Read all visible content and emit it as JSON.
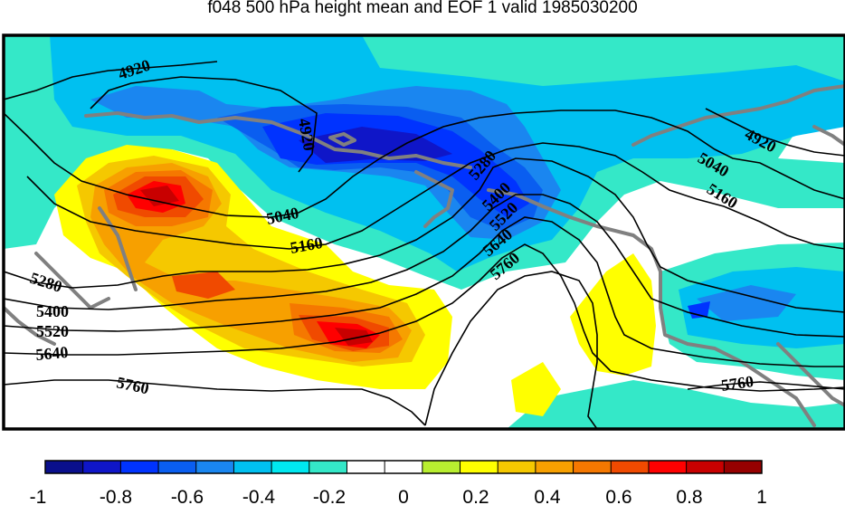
{
  "title": "f048 500 hPa height mean and EOF 1 valid 1985030200",
  "colorbar": {
    "labels": [
      "-1",
      "-0.8",
      "-0.6",
      "-0.4",
      "-0.2",
      "0",
      "0.2",
      "0.4",
      "0.6",
      "0.8",
      "1"
    ],
    "colors": [
      "#0a0f8c",
      "#0f16c8",
      "#0033ff",
      "#0a5ef0",
      "#1a86f0",
      "#00c0f0",
      "#00e8f0",
      "#34e8c8",
      "#ffffff",
      "#ffffff",
      "#b8ee30",
      "#ffff00",
      "#f5c800",
      "#f7a000",
      "#f57800",
      "#f04a00",
      "#ff0000",
      "#c80000",
      "#960000"
    ]
  },
  "contour_labels": [
    "4920",
    "4920",
    "4920",
    "5040",
    "5040",
    "5160",
    "5160",
    "5280",
    "5280",
    "5400",
    "5400",
    "5520",
    "5520",
    "5640",
    "5640",
    "5760",
    "5760",
    "5760"
  ],
  "colors": {
    "coast": "#808080",
    "frame": "#000000",
    "contour": "#000000"
  }
}
